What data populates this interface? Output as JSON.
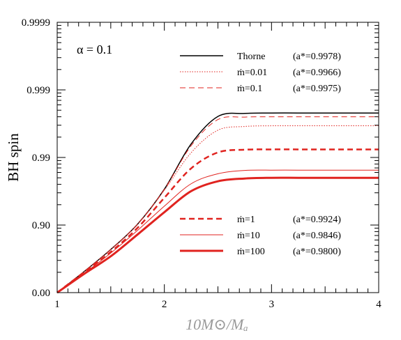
{
  "chart_data": {
    "type": "line",
    "annotation": "α = 0.1",
    "xlabel": "10M⊙/Mₐ",
    "ylabel": "BH spin",
    "xlim": [
      1,
      4
    ],
    "xticks": [
      1,
      2,
      3,
      4
    ],
    "xtick_labels": [
      "1",
      "2",
      "3",
      "4"
    ],
    "y_scale": "log10 of 1/(1 - spin)",
    "yticks": [
      0.0,
      0.9,
      0.99,
      0.999,
      0.9999
    ],
    "ytick_labels": [
      "0.00",
      "0.90",
      "0.99",
      "0.999",
      "0.9999"
    ],
    "ylim": [
      0.0,
      0.9999
    ],
    "grid": false,
    "legend_placement": [
      "top-right",
      "lower-right"
    ],
    "colors": {
      "black": "#000000",
      "red": "#e0231f"
    },
    "x": [
      1.0,
      1.25,
      1.5,
      1.75,
      2.0,
      2.25,
      2.5,
      2.75,
      3.0,
      3.25,
      3.5,
      3.75,
      4.0
    ],
    "series": [
      {
        "name": "Thorne",
        "label": "(a*=0.9978)",
        "color": "#000000",
        "style": "solid",
        "width": 1.5,
        "values": [
          0.0,
          0.51,
          0.77,
          0.903,
          0.9705,
          0.9937,
          0.99753,
          0.99777,
          0.9978,
          0.9978,
          0.9978,
          0.9978,
          0.9978
        ]
      },
      {
        "name": "ṁ=0.01",
        "label": "(a*=0.9966)",
        "color": "#e0231f",
        "style": "dotted",
        "width": 1.0,
        "values": [
          0.0,
          0.51,
          0.77,
          0.903,
          0.9695,
          0.9915,
          0.99605,
          0.99652,
          0.9966,
          0.9966,
          0.9966,
          0.9966,
          0.9966
        ]
      },
      {
        "name": "ṁ=0.1",
        "label": "(a*=0.9975)",
        "color": "#e0231f",
        "style": "dashed",
        "width": 1.0,
        "values": [
          0.0,
          0.51,
          0.77,
          0.903,
          0.9703,
          0.9933,
          0.99725,
          0.99747,
          0.9975,
          0.9975,
          0.9975,
          0.9975,
          0.9975
        ]
      },
      {
        "name": "ṁ=1",
        "label": "(a*=0.9924)",
        "color": "#e0231f",
        "style": "dashed",
        "width": 2.5,
        "values": [
          0.0,
          0.5,
          0.75,
          0.89,
          0.9605,
          0.9855,
          0.99158,
          0.99232,
          0.9924,
          0.9924,
          0.9924,
          0.9924,
          0.9924
        ]
      },
      {
        "name": "ṁ=10",
        "label": "(a*=0.9846)",
        "color": "#e0231f",
        "style": "solid",
        "width": 1.0,
        "values": [
          0.0,
          0.48,
          0.74,
          0.88,
          0.9475,
          0.9755,
          0.9826,
          0.98446,
          0.9846,
          0.9846,
          0.9846,
          0.9846,
          0.9846
        ]
      },
      {
        "name": "ṁ=100",
        "label": "(a*=0.9800)",
        "color": "#e0231f",
        "style": "solid",
        "width": 3.0,
        "values": [
          0.0,
          0.47,
          0.71,
          0.862,
          0.9355,
          0.9685,
          0.9775,
          0.9795,
          0.98,
          0.98,
          0.98,
          0.98,
          0.98
        ]
      }
    ]
  }
}
